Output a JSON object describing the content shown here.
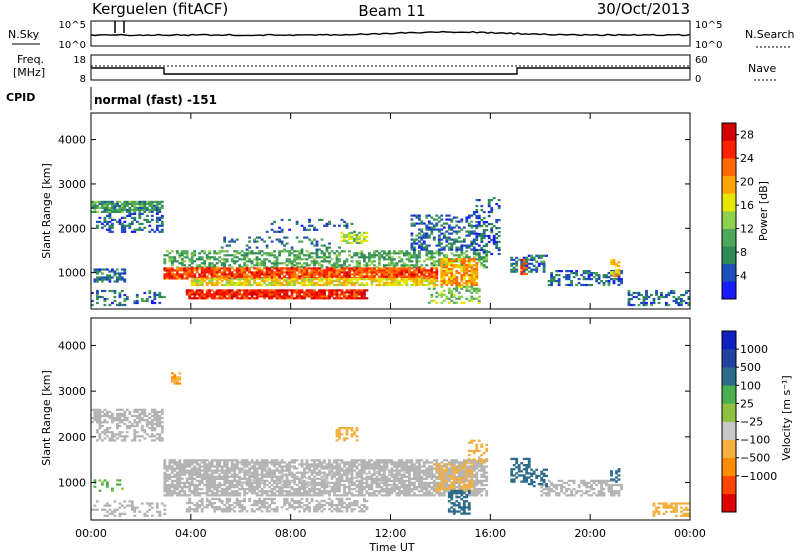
{
  "header": {
    "station": "Kerguelen (fitACF)",
    "beam": "Beam 11",
    "date": "30/Oct/2013"
  },
  "noise_panel": {
    "left_label": "N.Sky",
    "right_label": "N.Search",
    "top_tick": "10^5",
    "bottom_tick": "10^0"
  },
  "freq_panel": {
    "left_label_line1": "Freq.",
    "left_label_line2": "[MHz]",
    "right_label": "Nave",
    "left_ticks": [
      "18",
      "8"
    ],
    "right_ticks": [
      "60",
      "0"
    ]
  },
  "cpid": {
    "label": "CPID",
    "value": "normal (fast) -151"
  },
  "colors": {
    "power": [
      "#1a1aff",
      "#1f4fb8",
      "#2e8b57",
      "#4fa85a",
      "#8fd14f",
      "#e6e600",
      "#ffa500",
      "#ff6a00",
      "#ff2000",
      "#d40000"
    ],
    "velocity": [
      "#e00000",
      "#ff4500",
      "#ff8c00",
      "#f2b040",
      "#c8c8c8",
      "#90c040",
      "#4caf50",
      "#2e6b8a",
      "#2442a0",
      "#1020c0"
    ],
    "ground_scatter": "#b4b4b4"
  },
  "chart_data": [
    {
      "type": "heatmap",
      "title": "",
      "quantity": "Power",
      "ylabel": "Slant Range [km]",
      "xlabel": "",
      "colorbar_label": "Power [dB]",
      "colorbar_ticks": [
        "4",
        "8",
        "12",
        "16",
        "20",
        "24",
        "28"
      ],
      "colorbar_range": [
        0,
        30
      ],
      "yticks": [
        "1000",
        "2000",
        "3000",
        "4000"
      ],
      "ylim": [
        180,
        4600
      ],
      "xlim_hours": [
        0,
        24
      ],
      "regions": [
        {
          "t0": 0.0,
          "t1": 2.9,
          "r0": 2350,
          "r1": 2600,
          "v": 9,
          "density": 0.8
        },
        {
          "t0": 0.2,
          "t1": 2.9,
          "r0": 1900,
          "r1": 2350,
          "v": 5,
          "density": 0.35
        },
        {
          "t0": 0.1,
          "t1": 1.4,
          "r0": 780,
          "r1": 1080,
          "v": 6,
          "density": 0.6
        },
        {
          "t0": 0.0,
          "t1": 3.0,
          "r0": 250,
          "r1": 600,
          "v": 6,
          "density": 0.3
        },
        {
          "t0": 2.9,
          "t1": 15.8,
          "r0": 1100,
          "r1": 1500,
          "v": 10,
          "density": 0.55
        },
        {
          "t0": 2.9,
          "t1": 13.8,
          "r0": 850,
          "r1": 1100,
          "v": 24,
          "density": 0.9
        },
        {
          "t0": 4.0,
          "t1": 13.8,
          "r0": 700,
          "r1": 850,
          "v": 17,
          "density": 0.8
        },
        {
          "t0": 3.8,
          "t1": 11.0,
          "r0": 400,
          "r1": 600,
          "v": 26,
          "density": 0.9
        },
        {
          "t0": 5.0,
          "t1": 10.0,
          "r0": 1500,
          "r1": 1800,
          "v": 7,
          "density": 0.2
        },
        {
          "t0": 12.8,
          "t1": 15.5,
          "r0": 1500,
          "r1": 2300,
          "v": 6,
          "density": 0.45
        },
        {
          "t0": 14.0,
          "t1": 15.4,
          "r0": 700,
          "r1": 1300,
          "v": 20,
          "density": 0.75
        },
        {
          "t0": 13.5,
          "t1": 15.5,
          "r0": 300,
          "r1": 700,
          "v": 13,
          "density": 0.45
        },
        {
          "t0": 15.3,
          "t1": 16.4,
          "r0": 1400,
          "r1": 2700,
          "v": 5,
          "density": 0.35
        },
        {
          "t0": 17.2,
          "t1": 17.5,
          "r0": 950,
          "r1": 1300,
          "v": 24,
          "density": 0.8
        },
        {
          "t0": 16.8,
          "t1": 18.3,
          "r0": 1000,
          "r1": 1400,
          "v": 6,
          "density": 0.5
        },
        {
          "t0": 18.3,
          "t1": 21.3,
          "r0": 700,
          "r1": 1050,
          "v": 6,
          "density": 0.5
        },
        {
          "t0": 20.8,
          "t1": 21.2,
          "r0": 900,
          "r1": 1300,
          "v": 18,
          "density": 0.6
        },
        {
          "t0": 21.5,
          "t1": 24.0,
          "r0": 250,
          "r1": 600,
          "v": 6,
          "density": 0.45
        },
        {
          "t0": 7.0,
          "t1": 10.5,
          "r0": 1900,
          "r1": 2200,
          "v": 5,
          "density": 0.15
        },
        {
          "t0": 10.0,
          "t1": 11.0,
          "r0": 1650,
          "r1": 1900,
          "v": 14,
          "density": 0.6
        }
      ]
    },
    {
      "type": "heatmap",
      "title": "",
      "quantity": "Velocity",
      "ylabel": "Slant Range [km]",
      "xlabel": "Time UT",
      "colorbar_label": "Velocity [m s⁻¹]",
      "colorbar_ticks": [
        "1000",
        "500",
        "100",
        "25",
        "−25",
        "−100",
        "−500",
        "−1000"
      ],
      "colorbar_range": [
        -1000,
        1000
      ],
      "yticks": [
        "1000",
        "2000",
        "3000",
        "4000"
      ],
      "xticks": [
        "00:00",
        "04:00",
        "08:00",
        "12:00",
        "16:00",
        "20:00",
        "00:00"
      ],
      "ylim": [
        180,
        4600
      ],
      "xlim_hours": [
        0,
        24
      ],
      "ground_scatter_regions": [
        {
          "t0": 0.0,
          "t1": 2.9,
          "r0": 2300,
          "r1": 2600,
          "density": 0.7
        },
        {
          "t0": 0.2,
          "t1": 2.9,
          "r0": 1900,
          "r1": 2300,
          "density": 0.45
        },
        {
          "t0": 2.9,
          "t1": 15.8,
          "r0": 700,
          "r1": 1500,
          "density": 0.75
        },
        {
          "t0": 3.8,
          "t1": 11.0,
          "r0": 350,
          "r1": 650,
          "density": 0.55
        },
        {
          "t0": 18.0,
          "t1": 21.3,
          "r0": 700,
          "r1": 1050,
          "density": 0.55
        },
        {
          "t0": 0.0,
          "t1": 3.0,
          "r0": 250,
          "r1": 600,
          "density": 0.25
        }
      ],
      "regions": [
        {
          "t0": 0.1,
          "t1": 1.3,
          "r0": 800,
          "r1": 1050,
          "v": 30,
          "density": 0.35
        },
        {
          "t0": 9.8,
          "t1": 10.6,
          "r0": 1900,
          "r1": 2200,
          "v": -300,
          "density": 0.55
        },
        {
          "t0": 13.8,
          "t1": 15.2,
          "r0": 800,
          "r1": 1400,
          "v": -250,
          "density": 0.5
        },
        {
          "t0": 14.3,
          "t1": 15.1,
          "r0": 300,
          "r1": 800,
          "v": 150,
          "density": 0.45
        },
        {
          "t0": 15.0,
          "t1": 15.8,
          "r0": 1400,
          "r1": 1900,
          "v": -120,
          "density": 0.35
        },
        {
          "t0": 16.8,
          "t1": 17.6,
          "r0": 1000,
          "r1": 1500,
          "v": 200,
          "density": 0.55
        },
        {
          "t0": 17.5,
          "t1": 18.3,
          "r0": 900,
          "r1": 1300,
          "v": 400,
          "density": 0.4
        },
        {
          "t0": 20.8,
          "t1": 21.2,
          "r0": 1000,
          "r1": 1300,
          "v": 300,
          "density": 0.5
        },
        {
          "t0": 22.5,
          "t1": 24.0,
          "r0": 250,
          "r1": 550,
          "v": -250,
          "density": 0.45
        },
        {
          "t0": 6.0,
          "t1": 12.5,
          "r0": 900,
          "r1": 1300,
          "v": -60,
          "density": 0.08
        },
        {
          "t0": 3.2,
          "t1": 3.6,
          "r0": 3100,
          "r1": 3400,
          "v": -500,
          "density": 0.6
        }
      ]
    }
  ]
}
